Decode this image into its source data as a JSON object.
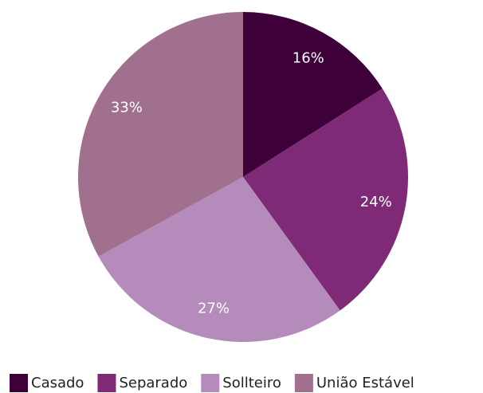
{
  "chart_data": {
    "type": "pie",
    "categories": [
      "Casado",
      "Separado",
      "Sollteiro",
      "União Estável"
    ],
    "values": [
      16,
      24,
      27,
      33
    ],
    "value_labels": [
      "16%",
      "24%",
      "27%",
      "33%"
    ],
    "colors": [
      "#3d0038",
      "#7e2a77",
      "#b48bbb",
      "#a0708e"
    ],
    "legend": "bottom"
  }
}
